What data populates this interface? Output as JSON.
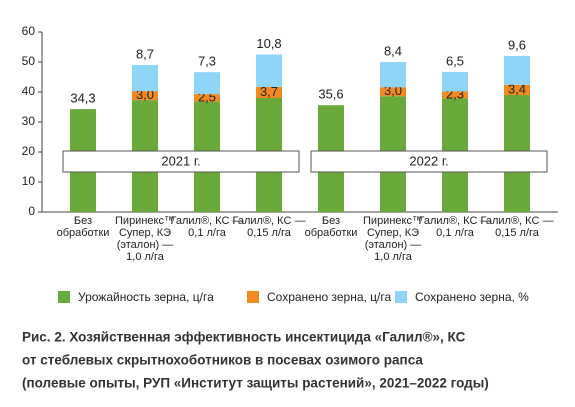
{
  "chart_data": {
    "type": "stacked_bar",
    "categories": [
      "Без\nобработки",
      "Пиринекс™\nСупер, КЭ\n(эталон) —\n1,0 л/га",
      "Галил®, КС —\n0,1 л/га",
      "Галил®, КС —\n0,15 л/га",
      "Без\nобработки",
      "Пиринекс™\nСупер, КЭ\n(эталон) —\n1,0 л/га",
      "Галил®, КС —\n0,1 л/га",
      "Галил®, КС —\n0,15 л/га"
    ],
    "group_labels": [
      "2021 г.",
      "2022 г."
    ],
    "series": [
      {
        "name": "Урожайность зерна, ц/га",
        "color": "#6aaa3a",
        "values": [
          34.3,
          37.3,
          36.8,
          38.0,
          35.6,
          38.6,
          37.9,
          39.0
        ],
        "value_labels": [
          "34,3",
          null,
          null,
          null,
          "35,6",
          null,
          null,
          null
        ]
      },
      {
        "name": "Сохранено зерна, ц/га",
        "color": "#f28a22",
        "values": [
          null,
          3.0,
          2.5,
          3.7,
          null,
          3.0,
          2.3,
          3.4
        ],
        "value_labels": [
          null,
          "3,0",
          "2,5",
          "3,7",
          null,
          "3,0",
          "2,3",
          "3,4"
        ]
      },
      {
        "name": "Сохранено зерна, %",
        "color": "#8fd5f7",
        "values": [
          null,
          8.7,
          7.3,
          10.8,
          null,
          8.4,
          6.5,
          9.6
        ],
        "value_labels": [
          null,
          "8,7",
          "7,3",
          "10,8",
          null,
          "8,4",
          "6,5",
          "9,6"
        ]
      }
    ],
    "ylim": [
      0,
      60
    ],
    "yticks": [
      0,
      10,
      20,
      30,
      40,
      50,
      60
    ],
    "grid": false,
    "caption": [
      "Рис. 2. Хозяйственная эффективность инсектицида «Галил®», КС",
      "от стеблевых скрытнохоботников в посевах озимого рапса",
      "(полевые опыты, РУП «Институт защиты растений», 2021–2022 годы)"
    ]
  }
}
